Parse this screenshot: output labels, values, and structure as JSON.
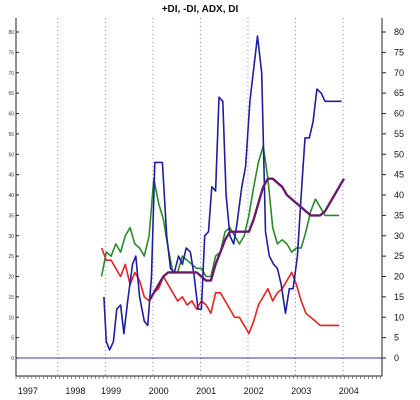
{
  "chart_data": {
    "type": "line",
    "title": "+DI, -DI, ADX, DI",
    "xlabel": "",
    "ylabel": "",
    "ylim": [
      0,
      80
    ],
    "yticks_left": [
      0,
      5,
      10,
      15,
      20,
      25,
      30,
      35,
      40,
      45,
      50,
      55,
      60,
      65,
      70,
      75,
      80,
      85
    ],
    "yticks_right": [
      0,
      5,
      10,
      15,
      20,
      25,
      30,
      35,
      40,
      45,
      50,
      55,
      60,
      65,
      70,
      75,
      80
    ],
    "xlim": [
      1997.0,
      2004.7
    ],
    "year_labels": [
      "1997",
      "1998",
      "1999",
      "2000",
      "2001",
      "2002",
      "2003",
      "2004"
    ],
    "year_positions": [
      1997.25,
      1998.25,
      1999.0,
      2000.0,
      2001.0,
      2002.0,
      2003.0,
      2004.0
    ],
    "grid": "vertical dotted at year boundaries",
    "colors": {
      "plus_di": "#1e1ea0",
      "minus_di": "#e82020",
      "adx": "#2a8a2a",
      "di": "#6a1a6a",
      "zero_line": "#3a3aa0",
      "grid": "#8888cc"
    },
    "series": [
      {
        "key": "plus_di",
        "x": [
          1998.85,
          1998.9,
          1998.97,
          1999.05,
          1999.12,
          1999.2,
          1999.27,
          1999.35,
          1999.45,
          1999.52,
          1999.6,
          1999.7,
          1999.77,
          1999.85,
          1999.92,
          2000.0,
          2000.08,
          2000.17,
          2000.25,
          2000.33,
          2000.42,
          2000.5,
          2000.58,
          2000.67,
          2000.75,
          2000.83,
          2000.9,
          2000.97,
          2001.05,
          2001.12,
          2001.2,
          2001.27,
          2001.35,
          2001.42,
          2001.5,
          2001.58,
          2001.65,
          2001.75,
          2001.83,
          2001.92,
          2002.0,
          2002.08,
          2002.17,
          2002.25,
          2002.33,
          2002.42,
          2002.5,
          2002.58,
          2002.67,
          2002.75,
          2002.83,
          2002.92,
          2003.0,
          2003.08,
          2003.17,
          2003.25,
          2003.33,
          2003.42,
          2003.5,
          2003.58,
          2003.67,
          2003.75,
          2003.85
        ],
        "values": [
          15,
          4,
          2,
          4,
          12,
          13,
          6,
          14,
          23,
          25,
          15,
          9,
          8,
          20,
          48,
          48,
          48,
          30,
          22,
          21,
          25,
          23,
          27,
          26,
          20,
          12,
          12,
          30,
          31,
          42,
          41,
          64,
          63,
          40,
          30,
          28,
          33,
          42,
          47,
          63,
          71,
          79,
          70,
          31,
          25,
          23,
          22,
          18,
          11,
          17,
          17,
          25,
          40,
          54,
          54,
          58,
          66,
          65,
          63,
          63,
          63,
          63,
          63
        ]
      },
      {
        "key": "minus_di",
        "x": [
          1998.8,
          1998.9,
          1999.0,
          1999.1,
          1999.2,
          1999.3,
          1999.4,
          1999.5,
          1999.6,
          1999.7,
          1999.8,
          1999.9,
          2000.0,
          2000.1,
          2000.2,
          2000.3,
          2000.4,
          2000.5,
          2000.6,
          2000.7,
          2000.8,
          2000.9,
          2001.0,
          2001.1,
          2001.2,
          2001.3,
          2001.4,
          2001.5,
          2001.6,
          2001.7,
          2001.8,
          2001.9,
          2002.0,
          2002.1,
          2002.2,
          2002.3,
          2002.4,
          2002.5,
          2002.6,
          2002.7,
          2002.8,
          2002.9,
          2003.0,
          2003.1,
          2003.2,
          2003.3,
          2003.4,
          2003.5,
          2003.6,
          2003.7,
          2003.8
        ],
        "values": [
          27,
          24,
          24,
          22,
          20,
          23,
          18,
          21,
          19,
          15,
          14,
          16,
          17,
          20,
          18,
          16,
          14,
          15,
          13,
          14,
          12,
          14,
          13,
          11,
          16,
          16,
          14,
          12,
          10,
          10,
          8,
          6,
          9,
          13,
          15,
          17,
          14,
          16,
          17,
          19,
          21,
          18,
          14,
          11,
          10,
          9,
          8,
          8,
          8,
          8,
          8
        ]
      },
      {
        "key": "adx",
        "x": [
          1998.8,
          1998.9,
          1999.0,
          1999.1,
          1999.2,
          1999.3,
          1999.4,
          1999.5,
          1999.6,
          1999.7,
          1999.8,
          1999.9,
          2000.0,
          2000.1,
          2000.2,
          2000.3,
          2000.4,
          2000.5,
          2000.6,
          2000.7,
          2000.8,
          2000.9,
          2001.0,
          2001.1,
          2001.2,
          2001.3,
          2001.4,
          2001.5,
          2001.6,
          2001.7,
          2001.8,
          2001.9,
          2002.0,
          2002.1,
          2002.2,
          2002.3,
          2002.4,
          2002.5,
          2002.6,
          2002.7,
          2002.8,
          2002.9,
          2003.0,
          2003.1,
          2003.2,
          2003.3,
          2003.4,
          2003.5,
          2003.6,
          2003.7,
          2003.8
        ],
        "values": [
          20,
          26,
          25,
          28,
          26,
          30,
          32,
          28,
          27,
          25,
          30,
          44,
          38,
          34,
          27,
          21,
          21,
          25,
          24,
          23,
          22,
          22,
          20,
          20,
          25,
          26,
          31,
          32,
          30,
          28,
          30,
          35,
          42,
          48,
          52,
          44,
          32,
          28,
          29,
          28,
          26,
          27,
          27,
          31,
          36,
          39,
          37,
          35,
          35,
          35,
          35
        ]
      },
      {
        "key": "di",
        "x": [
          1999.8,
          1999.9,
          2000.0,
          2000.1,
          2000.2,
          2000.3,
          2000.4,
          2000.5,
          2000.6,
          2000.7,
          2000.8,
          2000.9,
          2001.0,
          2001.1,
          2001.2,
          2001.3,
          2001.4,
          2001.5,
          2001.6,
          2001.7,
          2001.8,
          2001.9,
          2002.0,
          2002.1,
          2002.2,
          2002.3,
          2002.4,
          2002.5,
          2002.6,
          2002.7,
          2002.8,
          2002.9,
          2003.0,
          2003.1,
          2003.2,
          2003.3,
          2003.4,
          2003.5,
          2003.6,
          2003.7,
          2003.8,
          2003.9
        ],
        "values": [
          14,
          16,
          18,
          20,
          21,
          21,
          21,
          21,
          21,
          21,
          21,
          20,
          19,
          19,
          23,
          26,
          29,
          31,
          31,
          31,
          31,
          31,
          34,
          38,
          42,
          44,
          44,
          43,
          42,
          40,
          39,
          38,
          37,
          36,
          35,
          35,
          35,
          36,
          38,
          40,
          42,
          44
        ]
      }
    ]
  }
}
